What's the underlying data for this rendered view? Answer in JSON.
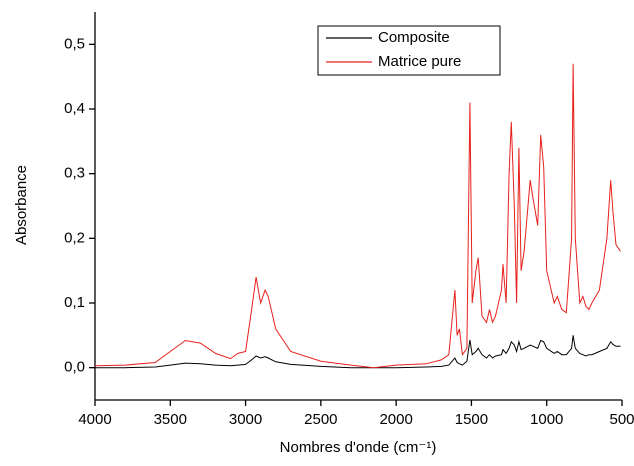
{
  "chart_data": {
    "type": "line",
    "xlabel": "Nombres d'onde (cm⁻¹)",
    "ylabel": "Absorbance",
    "x": [
      4000,
      3800,
      3600,
      3500,
      3400,
      3300,
      3200,
      3100,
      3050,
      3000,
      2960,
      2930,
      2900,
      2870,
      2850,
      2800,
      2700,
      2500,
      2300,
      2150,
      2000,
      1800,
      1700,
      1650,
      1610,
      1595,
      1580,
      1560,
      1530,
      1510,
      1495,
      1470,
      1455,
      1430,
      1400,
      1380,
      1360,
      1340,
      1300,
      1290,
      1270,
      1250,
      1235,
      1215,
      1200,
      1185,
      1170,
      1150,
      1110,
      1090,
      1060,
      1040,
      1020,
      1000,
      950,
      930,
      900,
      870,
      835,
      825,
      810,
      780,
      760,
      740,
      720,
      700,
      650,
      600,
      575,
      560,
      540,
      510
    ],
    "series": [
      {
        "name": "Composite",
        "color": "#000000",
        "values": [
          0.0,
          0.0,
          0.001,
          0.004,
          0.007,
          0.006,
          0.004,
          0.003,
          0.004,
          0.005,
          0.012,
          0.018,
          0.015,
          0.017,
          0.015,
          0.009,
          0.005,
          0.002,
          0.0,
          0.0,
          0.0,
          0.001,
          0.002,
          0.004,
          0.015,
          0.008,
          0.006,
          0.004,
          0.01,
          0.043,
          0.02,
          0.025,
          0.03,
          0.02,
          0.015,
          0.02,
          0.015,
          0.018,
          0.02,
          0.028,
          0.022,
          0.03,
          0.04,
          0.035,
          0.025,
          0.04,
          0.028,
          0.03,
          0.035,
          0.033,
          0.03,
          0.042,
          0.04,
          0.03,
          0.022,
          0.025,
          0.02,
          0.02,
          0.03,
          0.05,
          0.03,
          0.022,
          0.02,
          0.018,
          0.02,
          0.02,
          0.025,
          0.03,
          0.04,
          0.036,
          0.033,
          0.033
        ]
      },
      {
        "name": "Matrice pure",
        "color": "#e8201c",
        "values": [
          0.003,
          0.004,
          0.008,
          0.025,
          0.042,
          0.038,
          0.022,
          0.014,
          0.022,
          0.025,
          0.09,
          0.14,
          0.1,
          0.12,
          0.11,
          0.06,
          0.025,
          0.01,
          0.004,
          0.0,
          0.004,
          0.006,
          0.012,
          0.02,
          0.12,
          0.05,
          0.06,
          0.02,
          0.03,
          0.41,
          0.1,
          0.15,
          0.17,
          0.08,
          0.07,
          0.09,
          0.07,
          0.08,
          0.12,
          0.16,
          0.1,
          0.3,
          0.38,
          0.25,
          0.1,
          0.34,
          0.15,
          0.18,
          0.29,
          0.26,
          0.22,
          0.36,
          0.31,
          0.15,
          0.1,
          0.11,
          0.09,
          0.085,
          0.2,
          0.47,
          0.2,
          0.1,
          0.11,
          0.095,
          0.09,
          0.1,
          0.12,
          0.2,
          0.29,
          0.24,
          0.19,
          0.18
        ]
      }
    ],
    "xlim": [
      4000,
      500
    ],
    "ylim": [
      -0.05,
      0.55
    ],
    "xticks": [
      4000,
      3500,
      3000,
      2500,
      2000,
      1500,
      1000,
      500
    ],
    "yticks": [
      {
        "value": 0,
        "label": "0,0"
      },
      {
        "value": 0.1,
        "label": "0,1"
      },
      {
        "value": 0.2,
        "label": "0,2"
      },
      {
        "value": 0.3,
        "label": "0,3"
      },
      {
        "value": 0.4,
        "label": "0,4"
      },
      {
        "value": 0.5,
        "label": "0,5"
      }
    ],
    "legend": "upper-center",
    "grid": false
  }
}
